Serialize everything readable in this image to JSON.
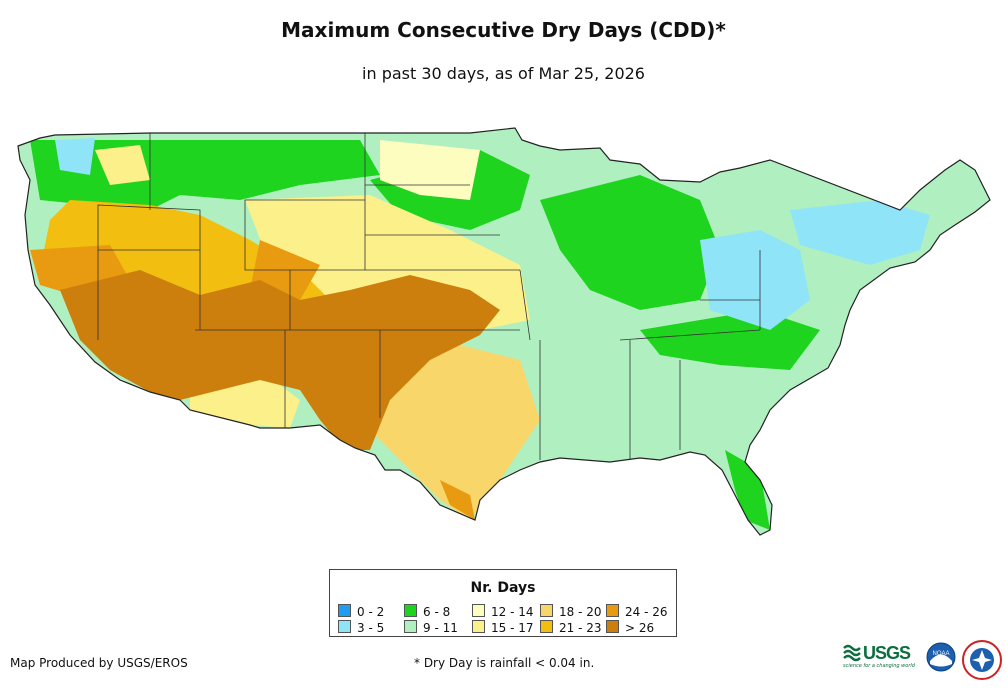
{
  "header": {
    "title": "Maximum Consecutive Dry Days (CDD)*",
    "subtitle": "in past 30 days, as of Mar 25, 2026"
  },
  "legend": {
    "title": "Nr. Days",
    "items": [
      {
        "label": "0 - 2",
        "color": "#1e9ef0"
      },
      {
        "label": "3 - 5",
        "color": "#8fe4f8"
      },
      {
        "label": "6 - 8",
        "color": "#1ed41e"
      },
      {
        "label": "9 - 11",
        "color": "#b0f0c0"
      },
      {
        "label": "12 - 14",
        "color": "#fdfdc0"
      },
      {
        "label": "15 - 17",
        "color": "#fbf08a"
      },
      {
        "label": "18 - 20",
        "color": "#f8d66a"
      },
      {
        "label": "21 - 23",
        "color": "#f2be10"
      },
      {
        "label": "24 - 26",
        "color": "#e89a10"
      },
      {
        "label": "> 26",
        "color": "#cc7f0c"
      }
    ]
  },
  "footer": {
    "credit": "Map Produced by USGS/EROS",
    "footnote": "* Dry Day is rainfall < 0.04 in."
  },
  "logos": {
    "usgs": "USGS",
    "usgs_tagline": "science for a changing world",
    "noaa": "NOAA"
  }
}
